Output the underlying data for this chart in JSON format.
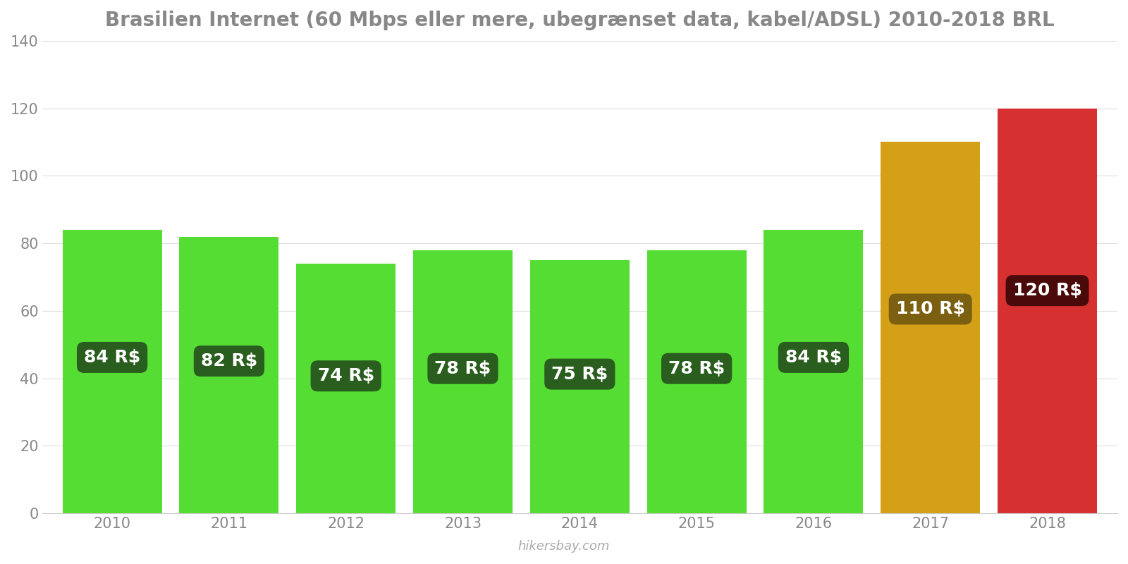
{
  "title": "Brasilien Internet (60 Mbps eller mere, ubegrænset data, kabel/ADSL) 2010-2018 BRL",
  "years": [
    2010,
    2011,
    2012,
    2013,
    2014,
    2015,
    2016,
    2017,
    2018
  ],
  "values": [
    84,
    82,
    74,
    78,
    75,
    78,
    84,
    110,
    120
  ],
  "bar_colors": [
    "#55dd33",
    "#55dd33",
    "#55dd33",
    "#55dd33",
    "#55dd33",
    "#55dd33",
    "#55dd33",
    "#d4a017",
    "#d63030"
  ],
  "label_bg_colors": [
    "#2a5e1e",
    "#2a5e1e",
    "#2a5e1e",
    "#2a5e1e",
    "#2a5e1e",
    "#2a5e1e",
    "#2a5e1e",
    "#7a6010",
    "#4a0a0a"
  ],
  "labels": [
    "84 R$",
    "82 R$",
    "74 R$",
    "78 R$",
    "75 R$",
    "78 R$",
    "84 R$",
    "110 R$",
    "120 R$"
  ],
  "ylim": [
    0,
    140
  ],
  "yticks": [
    0,
    20,
    40,
    60,
    80,
    100,
    120,
    140
  ],
  "watermark": "hikersbay.com",
  "background_color": "#ffffff",
  "title_fontsize": 20,
  "tick_fontsize": 15,
  "label_fontsize": 18,
  "bar_width": 0.85
}
